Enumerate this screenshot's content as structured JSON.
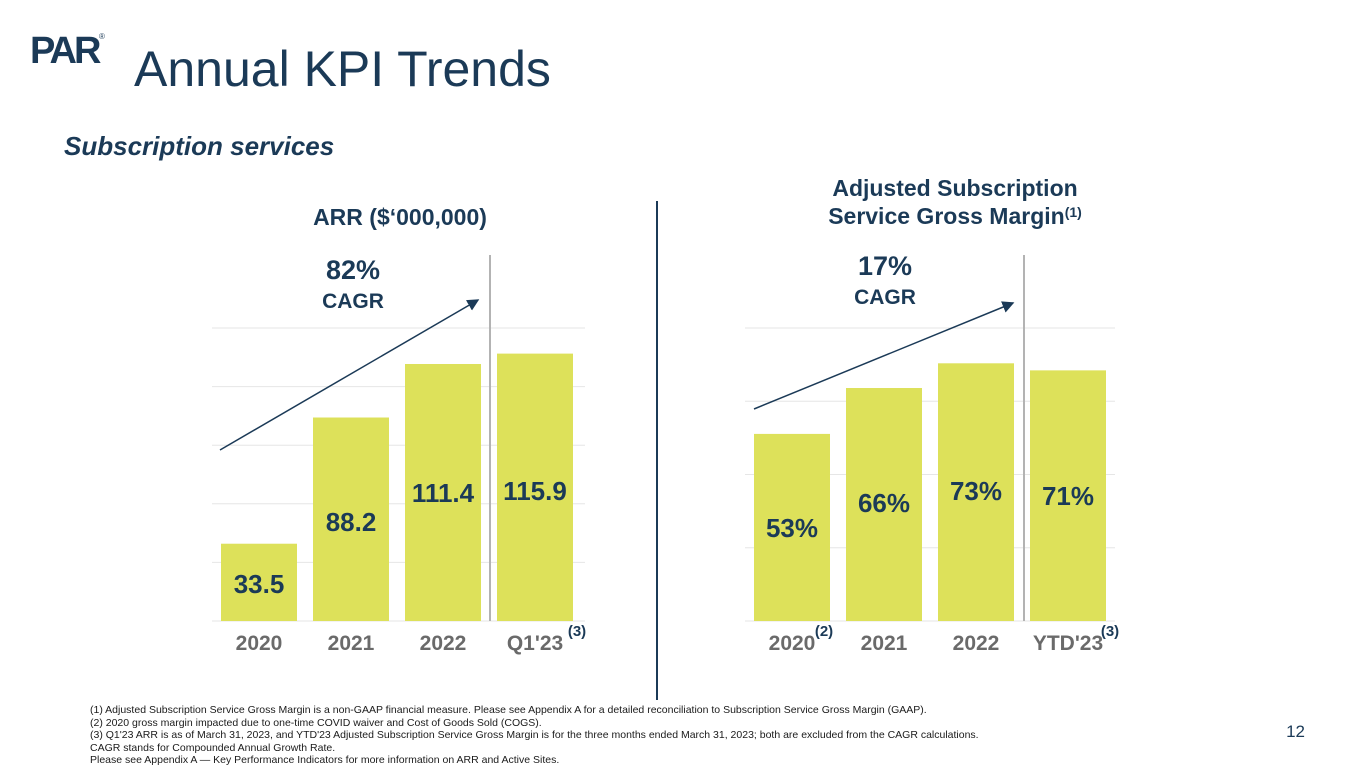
{
  "header": {
    "logo_text": "PAR",
    "logo_mark": "®",
    "title": "Annual KPI Trends",
    "subtitle": "Subscription services"
  },
  "colors": {
    "bar": "#dde15a",
    "text": "#1b3a57",
    "grid": "#e6e6e6",
    "separator": "#b3b3b3"
  },
  "chart_data": [
    {
      "type": "bar",
      "title": "ARR ($‘000,000)",
      "title_sup": "",
      "categories": [
        "2020",
        "2021",
        "2022",
        "Q1'23"
      ],
      "category_sups": [
        "",
        "",
        "",
        "(3)"
      ],
      "values": [
        33.5,
        88.2,
        111.4,
        115.9
      ],
      "value_labels": [
        "33.5",
        "88.2",
        "111.4",
        "115.9"
      ],
      "ylim": [
        0,
        127
      ],
      "grid": true,
      "cagr_value": "82%",
      "cagr_label": "CAGR"
    },
    {
      "type": "bar",
      "title": "Adjusted Subscription Service Gross Margin",
      "title_line1": "Adjusted Subscription",
      "title_line2": "Service Gross Margin",
      "title_sup": "(1)",
      "categories": [
        "2020",
        "2021",
        "2022",
        "YTD'23"
      ],
      "category_sups": [
        "(2)",
        "",
        "",
        "(3)"
      ],
      "values": [
        53,
        66,
        73,
        71
      ],
      "value_labels": [
        "53%",
        "66%",
        "73%",
        "71%"
      ],
      "ylim": [
        0,
        83
      ],
      "grid": true,
      "cagr_value": "17%",
      "cagr_label": "CAGR"
    }
  ],
  "footnotes": [
    "(1) Adjusted Subscription Service Gross Margin is a non-GAAP financial measure. Please see Appendix A for a detailed reconciliation to Subscription Service Gross Margin (GAAP).",
    "(2) 2020 gross margin impacted due to one-time COVID waiver and Cost of Goods Sold (COGS).",
    "(3) Q1'23 ARR is as of March 31, 2023, and YTD'23 Adjusted Subscription Service Gross Margin is for the three months ended March 31, 2023; both are excluded from the CAGR calculations.",
    "CAGR stands for Compounded Annual Growth Rate.",
    "Please see Appendix A — Key Performance Indicators for more information on ARR and Active Sites."
  ],
  "page_number": "12"
}
